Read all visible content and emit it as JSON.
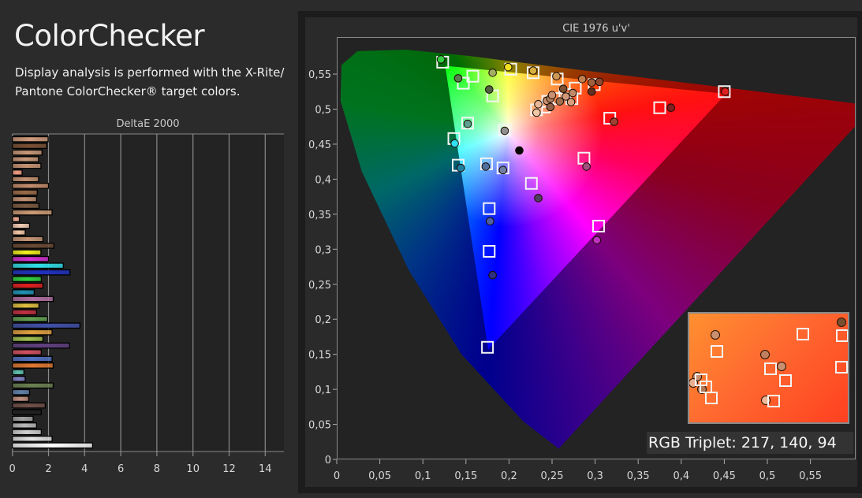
{
  "header": {
    "title": "ColorChecker",
    "description": "Display analysis is performed with the X-Rite/ Pantone ColorChecker® target colors."
  },
  "chart_data": [
    {
      "type": "bar",
      "orientation": "horizontal",
      "title": "DeltaE 2000",
      "xlim": [
        0,
        15
      ],
      "xticks": [
        "0",
        "2",
        "4",
        "6",
        "8",
        "10",
        "12",
        "14"
      ],
      "grid": true,
      "values": [
        1.98,
        1.9,
        1.64,
        1.45,
        1.58,
        0.54,
        1.45,
        2.0,
        1.38,
        1.34,
        1.47,
        2.2,
        0.39,
        0.95,
        0.71,
        1.69,
        2.3,
        1.58,
        2.0,
        2.82,
        3.19,
        1.6,
        1.69,
        1.21,
        2.26,
        1.47,
        1.34,
        1.95,
        3.74,
        2.2,
        1.69,
        3.17,
        1.6,
        2.2,
        2.26,
        0.64,
        0.71,
        2.26,
        0.95,
        0.9,
        1.82,
        1.6,
        1.15,
        1.34,
        1.6,
        2.2,
        4.44
      ],
      "colors": [
        "#cf9a7c",
        "#7a5034",
        "#c69676",
        "#c8987a",
        "#c49272",
        "#ee9a80",
        "#c29272",
        "#c48c6c",
        "#9a6a48",
        "#bf9070",
        "#7a5a40",
        "#cc9a74",
        "#e8a890",
        "#f2ccb4",
        "#f0c4a4",
        "#c49474",
        "#6a4a34",
        "#f0f020",
        "#d030d0",
        "#30e0e8",
        "#2030c0",
        "#30d040",
        "#e02020",
        "#2090b0",
        "#b070a0",
        "#e0c040",
        "#c03040",
        "#60a050",
        "#4050a8",
        "#e0a040",
        "#a0c050",
        "#604080",
        "#d05060",
        "#5070c0",
        "#e07830",
        "#60c0b0",
        "#8080c0",
        "#6a8050",
        "#6080a8",
        "#c09080",
        "#705048",
        "#202020",
        "#a0a0a0",
        "#b8b8b8",
        "#d0d0d0",
        "#e4e4e4",
        "#ffffff"
      ]
    },
    {
      "type": "scatter",
      "title": "CIE 1976 u'v'",
      "xlim": [
        0,
        0.6
      ],
      "ylim": [
        0,
        0.6
      ],
      "xticks": [
        "0",
        "0,05",
        "0,1",
        "0,15",
        "0,2",
        "0,25",
        "0,3",
        "0,35",
        "0,4",
        "0,45",
        "0,5",
        "0,55"
      ],
      "yticks": [
        "0",
        "0,05",
        "0,1",
        "0,15",
        "0,2",
        "0,25",
        "0,3",
        "0,35",
        "0,4",
        "0,45",
        "0,5",
        "0,55"
      ],
      "gamut": {
        "red": [
          0.451,
          0.523
        ],
        "green": [
          0.125,
          0.563
        ],
        "blue": [
          0.175,
          0.158
        ]
      },
      "targets": [
        [
          0.123,
          0.567
        ],
        [
          0.147,
          0.537
        ],
        [
          0.158,
          0.547
        ],
        [
          0.181,
          0.519
        ],
        [
          0.202,
          0.557
        ],
        [
          0.228,
          0.552
        ],
        [
          0.256,
          0.543
        ],
        [
          0.195,
          0.47
        ],
        [
          0.152,
          0.48
        ],
        [
          0.136,
          0.458
        ],
        [
          0.141,
          0.42
        ],
        [
          0.174,
          0.422
        ],
        [
          0.193,
          0.416
        ],
        [
          0.226,
          0.394
        ],
        [
          0.287,
          0.43
        ],
        [
          0.317,
          0.487
        ],
        [
          0.375,
          0.502
        ],
        [
          0.45,
          0.525
        ],
        [
          0.177,
          0.358
        ],
        [
          0.177,
          0.297
        ],
        [
          0.304,
          0.333
        ],
        [
          0.175,
          0.16
        ],
        [
          0.299,
          0.535
        ],
        [
          0.245,
          0.511
        ],
        [
          0.255,
          0.515
        ],
        [
          0.273,
          0.515
        ],
        [
          0.232,
          0.499
        ],
        [
          0.241,
          0.503
        ],
        [
          0.265,
          0.521
        ],
        [
          0.277,
          0.53
        ]
      ],
      "measured": [
        {
          "u": 0.121,
          "v": 0.571,
          "color": "#30d040"
        },
        {
          "u": 0.141,
          "v": 0.544,
          "color": "#5a7a50"
        },
        {
          "u": 0.181,
          "v": 0.552,
          "color": "#a0b060"
        },
        {
          "u": 0.177,
          "v": 0.528,
          "color": "#506040"
        },
        {
          "u": 0.199,
          "v": 0.56,
          "color": "#f0e020"
        },
        {
          "u": 0.228,
          "v": 0.555,
          "color": "#d8b040"
        },
        {
          "u": 0.255,
          "v": 0.547,
          "color": "#d09858"
        },
        {
          "u": 0.285,
          "v": 0.543,
          "color": "#c08050"
        },
        {
          "u": 0.296,
          "v": 0.538,
          "color": "#a06040"
        },
        {
          "u": 0.305,
          "v": 0.539,
          "color": "#904830"
        },
        {
          "u": 0.296,
          "v": 0.525,
          "color": "#603020"
        },
        {
          "u": 0.263,
          "v": 0.529,
          "color": "#7a5030"
        },
        {
          "u": 0.234,
          "v": 0.507,
          "color": "#e8b898"
        },
        {
          "u": 0.232,
          "v": 0.495,
          "color": "#f0c8a8"
        },
        {
          "u": 0.244,
          "v": 0.512,
          "color": "#c89070"
        },
        {
          "u": 0.248,
          "v": 0.515,
          "color": "#b08060"
        },
        {
          "u": 0.25,
          "v": 0.52,
          "color": "#c89070"
        },
        {
          "u": 0.259,
          "v": 0.511,
          "color": "#a07050"
        },
        {
          "u": 0.266,
          "v": 0.518,
          "color": "#d09878"
        },
        {
          "u": 0.274,
          "v": 0.523,
          "color": "#c08868"
        },
        {
          "u": 0.272,
          "v": 0.51,
          "color": "#d8a080"
        },
        {
          "u": 0.248,
          "v": 0.503,
          "color": "#906048"
        },
        {
          "u": 0.195,
          "v": 0.469,
          "color": "#909090"
        },
        {
          "u": 0.212,
          "v": 0.441,
          "color": "#050505"
        },
        {
          "u": 0.152,
          "v": 0.479,
          "color": "#60a090"
        },
        {
          "u": 0.137,
          "v": 0.451,
          "color": "#30e0f0"
        },
        {
          "u": 0.144,
          "v": 0.416,
          "color": "#2080a0"
        },
        {
          "u": 0.173,
          "v": 0.418,
          "color": "#5070a0"
        },
        {
          "u": 0.193,
          "v": 0.413,
          "color": "#7080a0"
        },
        {
          "u": 0.234,
          "v": 0.373,
          "color": "#504060"
        },
        {
          "u": 0.29,
          "v": 0.418,
          "color": "#a05080"
        },
        {
          "u": 0.322,
          "v": 0.482,
          "color": "#a04030"
        },
        {
          "u": 0.388,
          "v": 0.502,
          "color": "#802020"
        },
        {
          "u": 0.451,
          "v": 0.525,
          "color": "#e02020"
        },
        {
          "u": 0.178,
          "v": 0.34,
          "color": "#5060a0"
        },
        {
          "u": 0.181,
          "v": 0.263,
          "color": "#303080"
        },
        {
          "u": 0.302,
          "v": 0.313,
          "color": "#c030c0"
        }
      ]
    }
  ],
  "readout": {
    "label": "RGB Triplet: 217, 140, 94"
  }
}
